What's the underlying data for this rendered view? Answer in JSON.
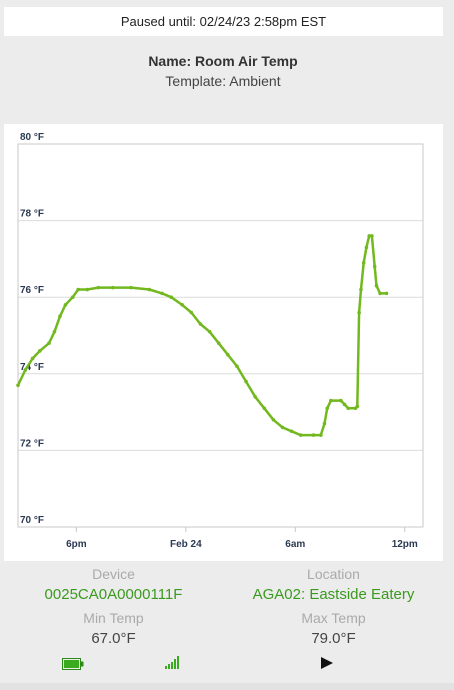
{
  "status": {
    "paused_text": "Paused until: 02/24/23 2:58pm EST"
  },
  "sensor": {
    "name_label": "Name:",
    "name_value": "Room Air Temp",
    "template_label": "Template:",
    "template_value": "Ambient"
  },
  "details": {
    "device_label": "Device",
    "device_value": "0025CA0A0000111F",
    "location_label": "Location",
    "location_value": "AGA02: Eastside Eatery",
    "min_label": "Min Temp",
    "min_value": "67.0°F",
    "max_label": "Max Temp",
    "max_value": "79.0°F"
  },
  "icons": [
    "battery-icon",
    "signal-strength-icon",
    "play-icon"
  ],
  "colors": {
    "line": "#72b81f",
    "link": "#3a9a1e"
  },
  "chart_data": {
    "type": "line",
    "title": "",
    "xlabel": "",
    "ylabel": "",
    "y_ticks": [
      "70 °F",
      "72 °F",
      "74 °F",
      "76 °F",
      "78 °F",
      "80 °F"
    ],
    "y_tick_values": [
      70,
      72,
      74,
      76,
      78,
      80
    ],
    "ylim": [
      70,
      80
    ],
    "x_ticks": [
      "6pm",
      "Feb 24",
      "6am",
      "12pm"
    ],
    "x_tick_values": [
      6,
      12,
      18,
      24
    ],
    "xlim": [
      2.8,
      25.0
    ],
    "x_unit": "hours from 12:00 Feb 23",
    "series": [
      {
        "values": [
          [
            2.8,
            73.7
          ],
          [
            3.2,
            74.1
          ],
          [
            3.6,
            74.4
          ],
          [
            4.0,
            74.6
          ],
          [
            4.5,
            74.8
          ],
          [
            4.8,
            75.1
          ],
          [
            5.1,
            75.5
          ],
          [
            5.4,
            75.8
          ],
          [
            5.8,
            76.0
          ],
          [
            6.1,
            76.2
          ],
          [
            6.6,
            76.2
          ],
          [
            7.2,
            76.25
          ],
          [
            8.0,
            76.25
          ],
          [
            9.0,
            76.25
          ],
          [
            10.0,
            76.2
          ],
          [
            10.7,
            76.1
          ],
          [
            11.2,
            76.0
          ],
          [
            11.8,
            75.8
          ],
          [
            12.3,
            75.6
          ],
          [
            12.8,
            75.3
          ],
          [
            13.3,
            75.1
          ],
          [
            13.8,
            74.8
          ],
          [
            14.3,
            74.5
          ],
          [
            14.8,
            74.2
          ],
          [
            15.3,
            73.8
          ],
          [
            15.8,
            73.4
          ],
          [
            16.3,
            73.1
          ],
          [
            16.8,
            72.8
          ],
          [
            17.3,
            72.6
          ],
          [
            17.8,
            72.5
          ],
          [
            18.3,
            72.4
          ],
          [
            19.0,
            72.4
          ],
          [
            19.4,
            72.4
          ],
          [
            19.6,
            72.7
          ],
          [
            19.75,
            73.1
          ],
          [
            19.95,
            73.3
          ],
          [
            20.5,
            73.3
          ],
          [
            20.7,
            73.2
          ],
          [
            20.9,
            73.1
          ],
          [
            21.3,
            73.1
          ],
          [
            21.4,
            73.15
          ],
          [
            21.5,
            75.6
          ],
          [
            21.6,
            76.2
          ],
          [
            21.75,
            76.9
          ],
          [
            21.9,
            77.3
          ],
          [
            22.05,
            77.6
          ],
          [
            22.2,
            77.6
          ],
          [
            22.35,
            76.8
          ],
          [
            22.45,
            76.3
          ],
          [
            22.65,
            76.1
          ],
          [
            23.0,
            76.1
          ]
        ]
      }
    ]
  }
}
